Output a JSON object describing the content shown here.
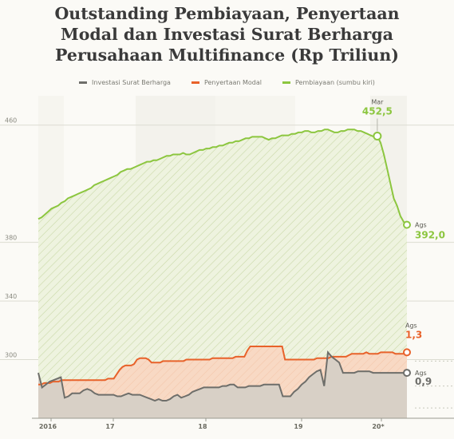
{
  "title_lines": [
    "Outstanding Pembiayaan, Penyertaan",
    "Modal dan Investasi Surat Berharga",
    "Perusahaan Multifinance (Rp Triliun)"
  ],
  "legend": [
    {
      "label": "Investasi Surat Berharga",
      "color": "#6e6e6a"
    },
    {
      "label": "Penyertaan Modal",
      "color": "#e8622a"
    },
    {
      "label": "Pembiayaan (sumbu kiri)",
      "color": "#8cc63f"
    }
  ],
  "chart_data": {
    "type": "area",
    "title": "Outstanding Pembiayaan, Penyertaan Modal dan Investasi Surat Berharga Perusahaan Multifinance (Rp Triliun)",
    "x_tick_labels": [
      "2016",
      "17",
      "18",
      "19",
      "20*"
    ],
    "left_axis": {
      "ticks": [
        460,
        380,
        340,
        300
      ],
      "ylim": [
        260,
        480
      ]
    },
    "right_axis_note": "Right-axis scale for Penyertaan Modal and Investasi Surat Berharga (Rp Triliun), tick labels partly cut off",
    "grid": true,
    "legend_position": "top",
    "series": [
      {
        "name": "Pembiayaan (sumbu kiri)",
        "axis": "left",
        "color": "#8cc63f",
        "values": [
          396,
          397,
          399,
          401,
          403,
          404,
          405,
          407,
          408,
          410,
          411,
          412,
          413,
          414,
          415,
          416,
          417,
          419,
          420,
          421,
          422,
          423,
          424,
          425,
          426,
          428,
          429,
          430,
          430,
          431,
          432,
          433,
          434,
          435,
          435,
          436,
          436,
          437,
          438,
          439,
          439,
          440,
          440,
          440,
          441,
          440,
          440,
          441,
          442,
          443,
          443,
          444,
          444,
          445,
          445,
          446,
          446,
          447,
          448,
          448,
          449,
          449,
          450,
          451,
          451,
          452,
          452,
          452,
          452,
          451,
          450,
          451,
          451,
          452,
          453,
          453,
          453,
          454,
          454,
          455,
          455,
          456,
          456,
          455,
          455,
          456,
          456,
          457,
          457,
          456,
          455,
          455,
          456,
          456,
          457,
          457,
          457,
          456,
          456,
          455,
          454,
          453,
          452,
          452.5,
          448,
          440,
          430,
          420,
          410,
          405,
          398,
          394,
          392
        ],
        "end_label": "392,0",
        "end_month": "Ags",
        "peak_label": "452,5",
        "peak_month": "Mar"
      },
      {
        "name": "Penyertaan Modal",
        "axis": "right",
        "color": "#e8622a",
        "values": [
          283,
          283,
          284,
          284,
          284,
          285,
          285,
          285,
          286,
          286,
          286,
          286,
          286,
          286,
          286,
          286,
          286,
          286,
          286,
          286,
          286,
          286,
          286,
          286,
          287,
          287,
          287,
          290,
          293,
          295,
          296,
          296,
          296,
          297,
          300,
          301,
          301,
          301,
          300,
          298,
          298,
          298,
          298,
          299,
          299,
          299,
          299,
          299,
          299,
          299,
          299,
          300,
          300,
          300,
          300,
          300,
          300,
          300,
          300,
          300,
          301,
          301,
          301,
          301,
          301,
          301,
          301,
          301,
          302,
          302,
          302,
          302,
          306,
          309,
          309,
          309,
          309,
          309,
          309,
          309,
          309,
          309,
          309,
          309,
          309,
          300,
          300,
          300,
          300,
          300,
          300,
          300,
          300,
          300,
          300,
          300,
          301,
          301,
          301,
          301,
          301,
          302,
          302,
          302,
          302,
          302,
          302,
          303,
          304,
          304,
          304,
          304,
          304,
          305,
          304,
          304,
          304,
          304,
          305,
          305,
          305,
          305,
          305,
          304,
          304,
          304,
          304,
          305
        ],
        "end_label": "1,3",
        "end_month": "Ags"
      },
      {
        "name": "Investasi Surat Berharga",
        "axis": "right",
        "color": "#6e6e6a",
        "values": [
          291,
          281,
          283,
          285,
          286,
          287,
          288,
          274,
          275,
          277,
          277,
          277,
          279,
          280,
          279,
          277,
          276,
          276,
          276,
          276,
          276,
          275,
          275,
          276,
          277,
          276,
          276,
          276,
          275,
          274,
          273,
          272,
          273,
          272,
          272,
          273,
          275,
          276,
          274,
          275,
          276,
          278,
          279,
          280,
          281,
          281,
          281,
          281,
          281,
          282,
          282,
          283,
          283,
          281,
          281,
          281,
          282,
          282,
          282,
          282,
          283,
          283,
          283,
          283,
          283,
          275,
          275,
          275,
          278,
          280,
          283,
          285,
          288,
          290,
          292,
          293,
          282,
          305,
          302,
          300,
          298,
          291,
          291,
          291,
          291,
          292,
          292,
          292,
          292,
          291,
          291,
          291,
          291,
          291,
          291,
          291,
          291,
          291,
          291
        ],
        "end_label": "0,9",
        "end_month": "Ags"
      }
    ]
  }
}
